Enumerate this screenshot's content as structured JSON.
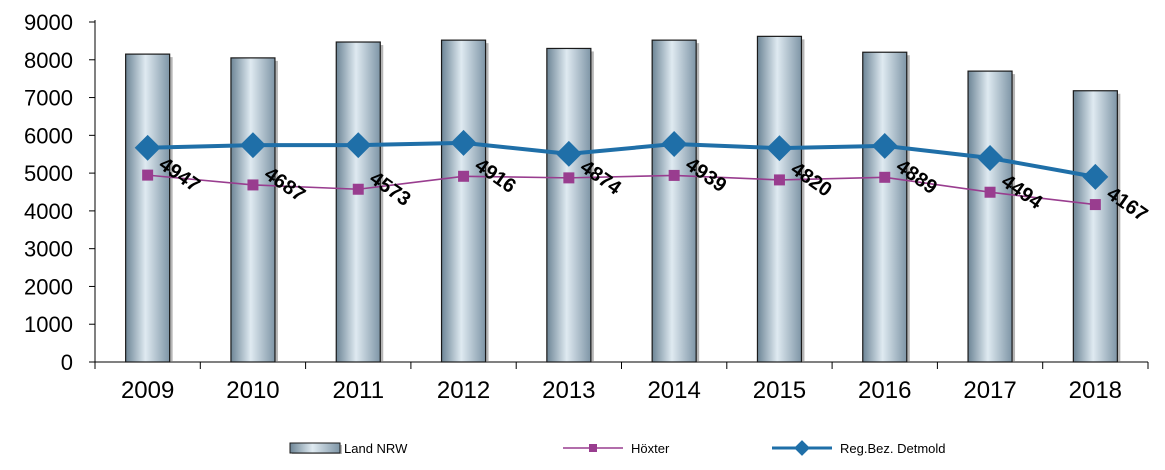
{
  "chart_data": {
    "type": "bar",
    "categories": [
      "2009",
      "2010",
      "2011",
      "2012",
      "2013",
      "2014",
      "2015",
      "2016",
      "2017",
      "2018"
    ],
    "ylim": [
      0,
      9000
    ],
    "yticks": [
      0,
      1000,
      2000,
      3000,
      4000,
      5000,
      6000,
      7000,
      8000,
      9000
    ],
    "grid": false,
    "legend_position": "bottom",
    "series": [
      {
        "name": "Land NRW",
        "type": "bar",
        "color": "#9fb6c6",
        "values": [
          8150,
          8050,
          8470,
          8520,
          8300,
          8520,
          8620,
          8200,
          7700,
          7180
        ]
      },
      {
        "name": "Höxter",
        "type": "line",
        "color": "#993d8f",
        "marker": "square",
        "values": [
          4947,
          4687,
          4573,
          4916,
          4874,
          4939,
          4820,
          4889,
          4494,
          4167
        ],
        "data_labels": [
          "4947",
          "4687",
          "4573",
          "4916",
          "4874",
          "4939",
          "4820",
          "4889",
          "4494",
          "4167"
        ]
      },
      {
        "name": "Reg.Bez. Detmold",
        "type": "line",
        "color": "#1f6fa8",
        "marker": "diamond",
        "values": [
          5670,
          5740,
          5740,
          5800,
          5510,
          5770,
          5660,
          5720,
          5400,
          4900
        ]
      }
    ]
  }
}
